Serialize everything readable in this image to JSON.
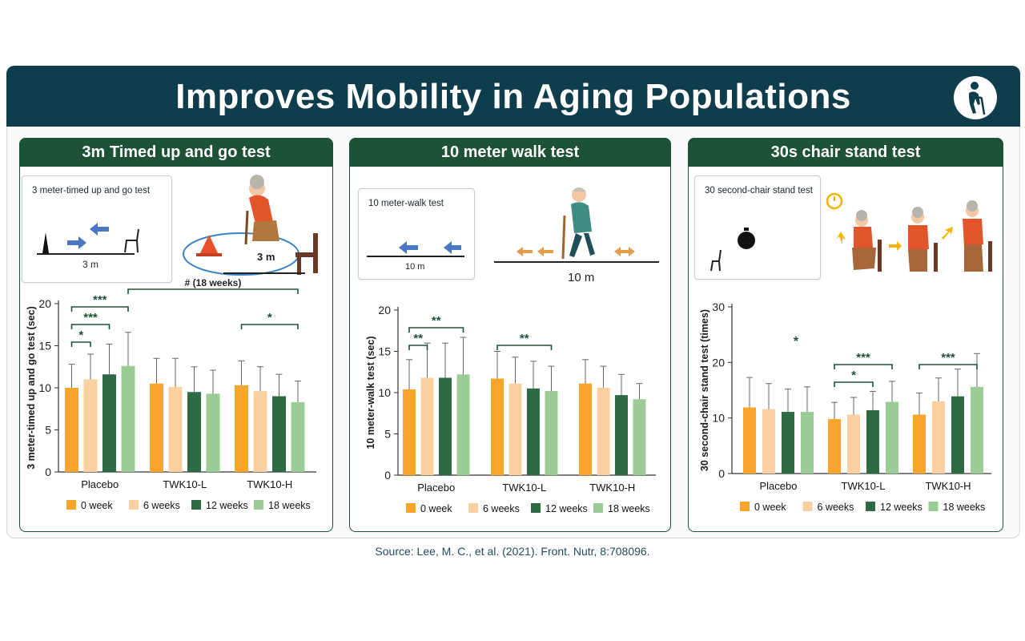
{
  "header": {
    "title": "Improves Mobility in Aging Populations",
    "icon": "elderly-person-with-cane-icon"
  },
  "colors": {
    "header_bg": "#0f3d4c",
    "panel_head_bg": "#1e5236",
    "week0": "#f7a52b",
    "week6": "#fbd0a0",
    "week12": "#2e6b45",
    "week18": "#9ccc95",
    "sig": "#1e5236"
  },
  "panels": [
    {
      "title": "3m Timed up and go test",
      "illustration": {
        "label": "3 meter-timed up and go test",
        "distance_small": "3 m",
        "distance_large": "3 m"
      }
    },
    {
      "title": "10 meter walk test",
      "illustration": {
        "label": "10 meter-walk test",
        "distance_small": "10 m",
        "distance_large": "10 m"
      }
    },
    {
      "title": "30s chair stand test",
      "illustration": {
        "label": "30 second-chair stand test"
      }
    }
  ],
  "chart_data": [
    {
      "type": "bar",
      "ylabel": "3 meter-timed up and go test (sec)",
      "ylim": [
        0,
        20
      ],
      "yticks": [
        0,
        5,
        10,
        15,
        20
      ],
      "categories": [
        "Placebo",
        "TWK10-L",
        "TWK10-H"
      ],
      "series": [
        {
          "name": "0 week",
          "values": [
            10.0,
            10.5,
            10.3
          ],
          "errors": [
            2.8,
            3.0,
            2.9
          ]
        },
        {
          "name": "6 weeks",
          "values": [
            11.0,
            10.1,
            9.6
          ],
          "errors": [
            3.0,
            3.4,
            2.9
          ]
        },
        {
          "name": "12 weeks",
          "values": [
            11.6,
            9.5,
            9.0
          ],
          "errors": [
            3.6,
            3.0,
            2.6
          ]
        },
        {
          "name": "18 weeks",
          "values": [
            12.6,
            9.3,
            8.3
          ],
          "errors": [
            4.0,
            2.8,
            2.5
          ]
        }
      ],
      "annotations": [
        {
          "label": "*",
          "from": [
            0,
            0
          ],
          "to": [
            0,
            1
          ],
          "row": 0
        },
        {
          "label": "***",
          "from": [
            0,
            0
          ],
          "to": [
            0,
            2
          ],
          "row": 1
        },
        {
          "label": "***",
          "from": [
            0,
            0
          ],
          "to": [
            0,
            3
          ],
          "row": 2
        },
        {
          "label": "*",
          "from": [
            2,
            0
          ],
          "to": [
            2,
            3
          ],
          "row": 1
        },
        {
          "label": "# (18 weeks)",
          "from": [
            0,
            3
          ],
          "to": [
            2,
            3
          ],
          "row": 3
        }
      ]
    },
    {
      "type": "bar",
      "ylabel": "10 meter-walk test (sec)",
      "ylim": [
        0,
        20
      ],
      "yticks": [
        0,
        5,
        10,
        15,
        20
      ],
      "categories": [
        "Placebo",
        "TWK10-L",
        "TWK10-H"
      ],
      "series": [
        {
          "name": "0 week",
          "values": [
            10.4,
            11.7,
            11.1
          ],
          "errors": [
            3.6,
            3.3,
            2.9
          ]
        },
        {
          "name": "6 weeks",
          "values": [
            11.8,
            11.1,
            10.6
          ],
          "errors": [
            4.2,
            3.2,
            2.6
          ]
        },
        {
          "name": "12 weeks",
          "values": [
            11.8,
            10.5,
            9.7
          ],
          "errors": [
            4.2,
            3.3,
            2.5
          ]
        },
        {
          "name": "18 weeks",
          "values": [
            12.2,
            10.2,
            9.2
          ],
          "errors": [
            4.5,
            3.0,
            1.9
          ]
        }
      ],
      "annotations": [
        {
          "label": "**",
          "from": [
            0,
            0
          ],
          "to": [
            0,
            1
          ],
          "row": 0
        },
        {
          "label": "**",
          "from": [
            0,
            0
          ],
          "to": [
            0,
            3
          ],
          "row": 1
        },
        {
          "label": "**",
          "from": [
            1,
            0
          ],
          "to": [
            1,
            3
          ],
          "row": 0
        }
      ]
    },
    {
      "type": "bar",
      "ylabel": "30 second-chair stand test (times)",
      "ylim": [
        0,
        30
      ],
      "yticks": [
        0,
        10,
        20,
        30
      ],
      "categories": [
        "Placebo",
        "TWK10-L",
        "TWK10-H"
      ],
      "series": [
        {
          "name": "0 week",
          "values": [
            11.9,
            9.8,
            10.6
          ],
          "errors": [
            5.4,
            3.0,
            3.9
          ]
        },
        {
          "name": "6 weeks",
          "values": [
            11.6,
            10.6,
            13.0
          ],
          "errors": [
            4.6,
            3.1,
            4.2
          ]
        },
        {
          "name": "12 weeks",
          "values": [
            11.1,
            11.4,
            13.9
          ],
          "errors": [
            4.1,
            3.4,
            4.9
          ]
        },
        {
          "name": "18 weeks",
          "values": [
            11.1,
            12.9,
            15.6
          ],
          "errors": [
            4.5,
            3.7,
            6.0
          ]
        }
      ],
      "annotations": [
        {
          "label": "*",
          "from": [
            1,
            0
          ],
          "to": [
            1,
            2
          ],
          "row": 0
        },
        {
          "label": "***",
          "from": [
            1,
            0
          ],
          "to": [
            1,
            3
          ],
          "row": 1
        },
        {
          "label": "***",
          "from": [
            2,
            0
          ],
          "to": [
            2,
            3
          ],
          "row": 1
        },
        {
          "label": "*",
          "free": true,
          "group": 0,
          "row": 2
        }
      ]
    }
  ],
  "source": "Source: Lee, M. C., et al. (2021). Front. Nutr, 8:708096."
}
